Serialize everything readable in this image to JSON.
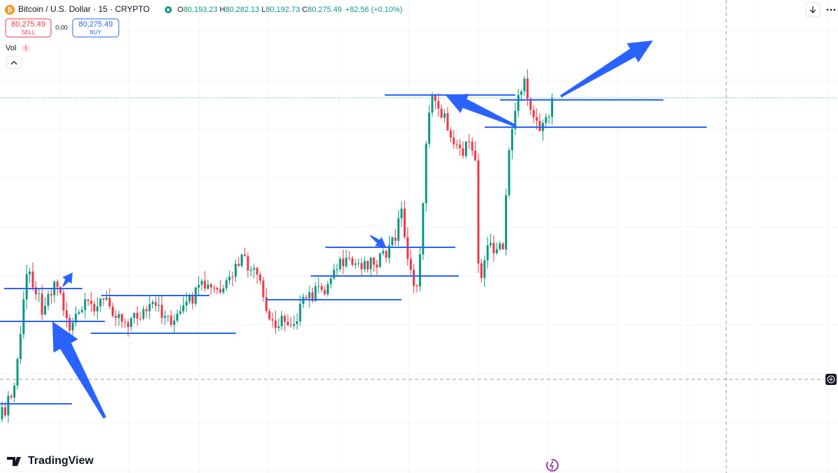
{
  "header": {
    "symbol": "Bitcoin / U.S. Dollar · 15 · CRYPTO",
    "ohlc": [
      {
        "label": "O",
        "value": "80,193.23"
      },
      {
        "label": "H",
        "value": "80,282.13"
      },
      {
        "label": "L",
        "value": "80,192.73"
      },
      {
        "label": "C",
        "value": "80,275.49"
      }
    ],
    "change": "+82.56 (+0.10%)"
  },
  "trade": {
    "sell_price": "80,275.49",
    "sell_label": "SELL",
    "spread": "0.00",
    "buy_price": "80,275.49",
    "buy_label": "BUY"
  },
  "volume_label": "Vol",
  "brand": "TradingView"
}
